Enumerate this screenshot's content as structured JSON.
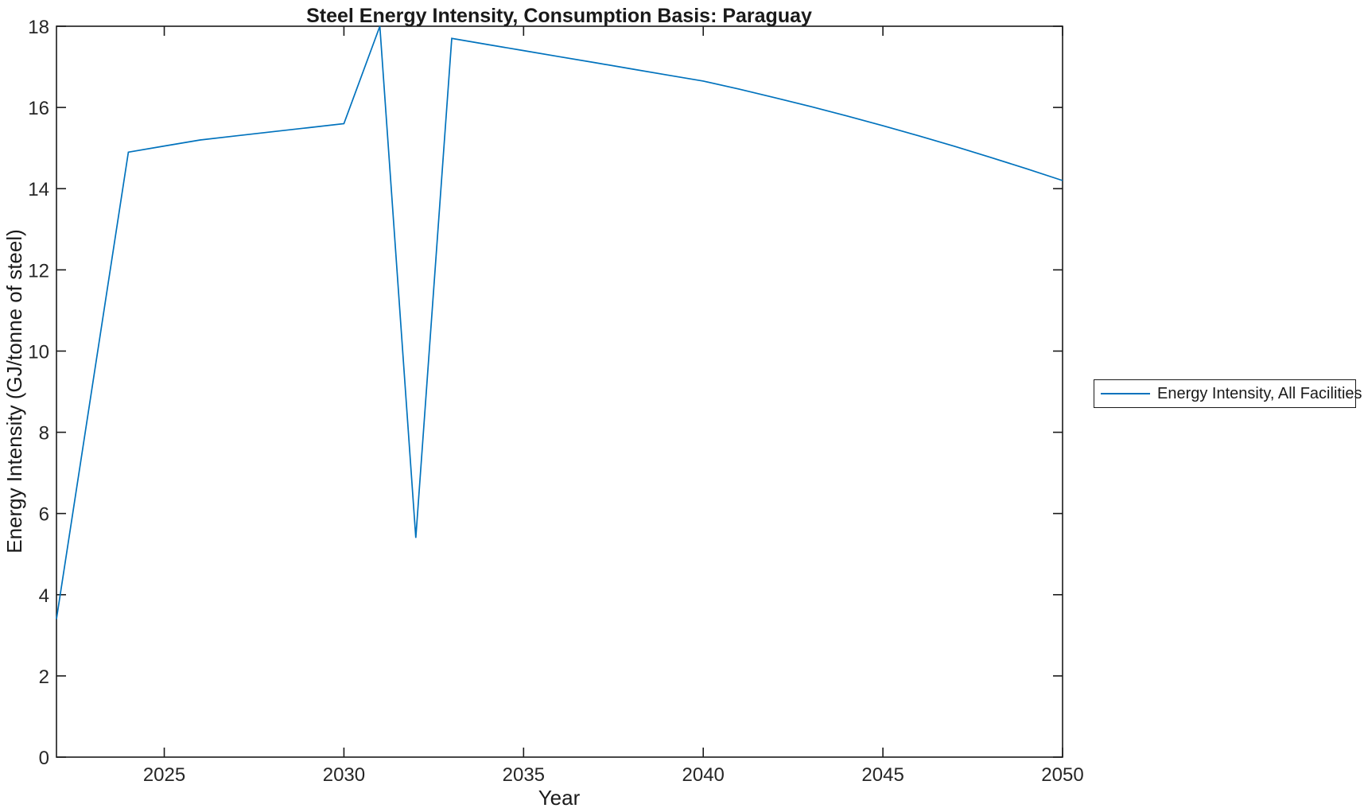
{
  "figure": {
    "title": "Steel Energy Intensity, Consumption Basis: Paraguay",
    "xlabel": "Year",
    "ylabel": "Energy Intensity (GJ/tonne of steel)"
  },
  "legend": {
    "position": "right-outside",
    "entries": [
      {
        "label": "Energy Intensity, All Facilities",
        "color": "#0072BD"
      }
    ]
  },
  "colors": {
    "line": "#0072BD",
    "axis": "#1a1a1a",
    "background": "#ffffff"
  },
  "chart_data": {
    "type": "line",
    "title": "Steel Energy Intensity, Consumption Basis: Paraguay",
    "xlabel": "Year",
    "ylabel": "Energy Intensity (GJ/tonne of steel)",
    "xlim": [
      2022,
      2050
    ],
    "ylim": [
      0,
      18
    ],
    "x_ticks": [
      2025,
      2030,
      2035,
      2040,
      2045,
      2050
    ],
    "y_ticks": [
      0,
      2,
      4,
      6,
      8,
      10,
      12,
      14,
      16,
      18
    ],
    "grid": false,
    "legend_position": "right-outside",
    "series": [
      {
        "name": "Energy Intensity, All Facilities",
        "color": "#0072BD",
        "x": [
          2022,
          2023,
          2024,
          2025,
          2026,
          2027,
          2028,
          2029,
          2030,
          2031,
          2032,
          2033,
          2034,
          2035,
          2036,
          2037,
          2038,
          2039,
          2040,
          2041,
          2042,
          2043,
          2044,
          2045,
          2046,
          2047,
          2048,
          2049,
          2050
        ],
        "values": [
          3.4,
          9.15,
          14.9,
          15.05,
          15.2,
          15.3,
          15.4,
          15.5,
          15.6,
          18.0,
          5.4,
          17.7,
          17.55,
          17.4,
          17.25,
          17.1,
          16.95,
          16.8,
          16.65,
          16.45,
          16.24,
          16.02,
          15.79,
          15.55,
          15.3,
          15.04,
          14.77,
          14.49,
          14.2
        ]
      }
    ]
  }
}
